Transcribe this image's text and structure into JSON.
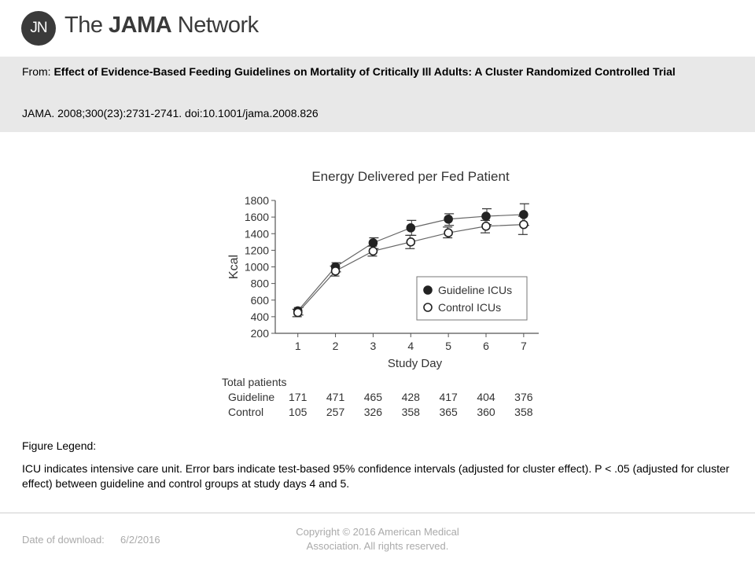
{
  "header": {
    "logo_monogram": "JN",
    "logo_text_pre": "The ",
    "logo_text_bold": "JAMA",
    "logo_text_post": " Network"
  },
  "citation": {
    "from_label": "From:",
    "title": "Effect of Evidence-Based Feeding Guidelines on Mortality of Critically Ill Adults: A Cluster Randomized Controlled Trial",
    "reference": "JAMA. 2008;300(23):2731-2741. doi:10.1001/jama.2008.826"
  },
  "chart_data": {
    "type": "line",
    "title": "Energy Delivered per Fed Patient",
    "xlabel": "Study Day",
    "ylabel": "Kcal",
    "x": [
      1,
      2,
      3,
      4,
      5,
      6,
      7
    ],
    "ylim": [
      200,
      1800
    ],
    "yticks": [
      200,
      400,
      600,
      800,
      1000,
      1200,
      1400,
      1600,
      1800
    ],
    "grid": false,
    "legend_position": "bottom-right",
    "series": [
      {
        "name": "Guideline ICUs",
        "marker": "filled-circle",
        "color": "#222222",
        "values": [
          470,
          1000,
          1290,
          1470,
          1575,
          1610,
          1630
        ],
        "ci_low": [
          420,
          940,
          1220,
          1380,
          1500,
          1510,
          1500
        ],
        "ci_high": [
          510,
          1050,
          1350,
          1560,
          1640,
          1700,
          1760
        ]
      },
      {
        "name": "Control ICUs",
        "marker": "open-circle",
        "color": "#222222",
        "values": [
          450,
          950,
          1190,
          1300,
          1410,
          1490,
          1510
        ],
        "ci_low": [
          400,
          890,
          1130,
          1220,
          1350,
          1410,
          1390
        ],
        "ci_high": [
          490,
          1010,
          1250,
          1380,
          1480,
          1560,
          1610
        ]
      }
    ],
    "patients_table": {
      "header": "Total patients",
      "rows": [
        {
          "label": "Guideline",
          "values": [
            "171",
            "471",
            "465",
            "428",
            "417",
            "404",
            "376"
          ]
        },
        {
          "label": "Control",
          "values": [
            "105",
            "257",
            "326",
            "358",
            "365",
            "360",
            "358"
          ]
        }
      ]
    }
  },
  "legend": {
    "label": "Figure Legend:",
    "text": "ICU indicates intensive care unit. Error bars indicate test-based 95% confidence intervals (adjusted for cluster effect). P < .05 (adjusted for cluster effect) between guideline and control groups at study days 4 and 5."
  },
  "footer": {
    "download_label": "Date of download:",
    "download_date": "6/2/2016",
    "copyright_line1": "Copyright © 2016 American Medical",
    "copyright_line2": "Association. All rights reserved."
  }
}
